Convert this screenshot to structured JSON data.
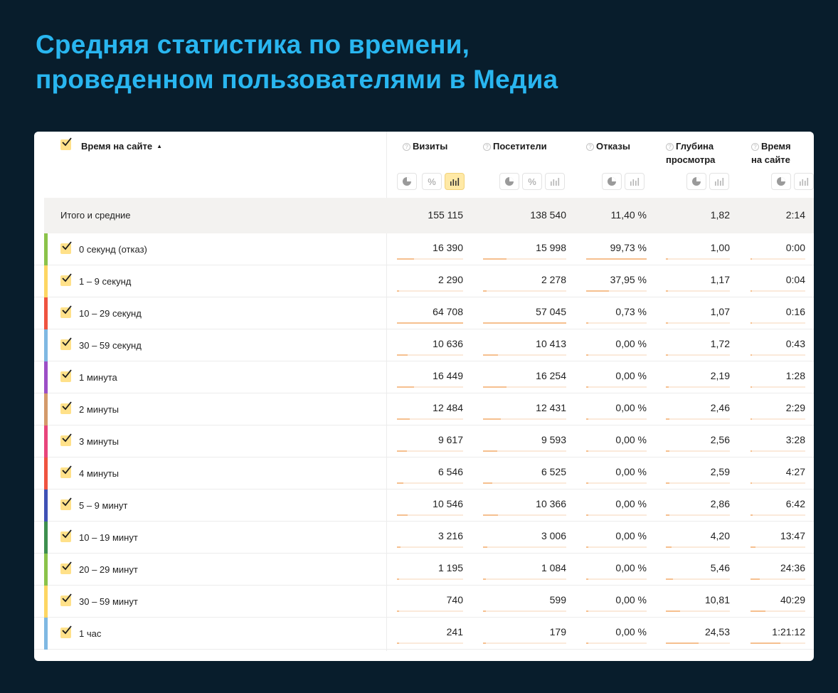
{
  "page": {
    "title_line1": "Средняя статистика по времени,",
    "title_line2": "проведенном пользователями в Медиа"
  },
  "table": {
    "dimension_header": "Время на сайте",
    "sort_indicator": "▲",
    "help_glyph": "?",
    "headers": {
      "visits": "Визиты",
      "visitors": "Посетители",
      "bounces": "Отказы",
      "depth_line1": "Глубина",
      "depth_line2": "просмотра",
      "time_line1": "Время",
      "time_line2": "на сайте"
    },
    "view_buttons": {
      "pie": "pie-chart-icon",
      "percent": "%",
      "bars": "bar-chart-icon"
    },
    "totals": {
      "label": "Итого и средние",
      "visits": "155 115",
      "visitors": "138 540",
      "bounces": "11,40 %",
      "depth": "1,82",
      "time": "2:14"
    },
    "rows": [
      {
        "label": "0 секунд (отказ)",
        "visits": "16 390",
        "visitors": "15 998",
        "bounces": "99,73 %",
        "depth": "1,00",
        "time": "0:00",
        "color": "#8bc34a"
      },
      {
        "label": "1 – 9 секунд",
        "visits": "2 290",
        "visitors": "2 278",
        "bounces": "37,95 %",
        "depth": "1,17",
        "time": "0:04",
        "color": "#fdd663"
      },
      {
        "label": "10 – 29 секунд",
        "visits": "64 708",
        "visitors": "57 045",
        "bounces": "0,73 %",
        "depth": "1,07",
        "time": "0:16",
        "color": "#ef5340"
      },
      {
        "label": "30 – 59 секунд",
        "visits": "10 636",
        "visitors": "10 413",
        "bounces": "0,00 %",
        "depth": "1,72",
        "time": "0:43",
        "color": "#7fb8e2"
      },
      {
        "label": "1 минута",
        "visits": "16 449",
        "visitors": "16 254",
        "bounces": "0,00 %",
        "depth": "2,19",
        "time": "1:28",
        "color": "#9c4fc6"
      },
      {
        "label": "2 минуты",
        "visits": "12 484",
        "visitors": "12 431",
        "bounces": "0,00 %",
        "depth": "2,46",
        "time": "2:29",
        "color": "#d49a6a"
      },
      {
        "label": "3 минуты",
        "visits": "9 617",
        "visitors": "9 593",
        "bounces": "0,00 %",
        "depth": "2,56",
        "time": "3:28",
        "color": "#e8457c"
      },
      {
        "label": "4 минуты",
        "visits": "6 546",
        "visitors": "6 525",
        "bounces": "0,00 %",
        "depth": "2,59",
        "time": "4:27",
        "color": "#ef5340"
      },
      {
        "label": "5 – 9 минут",
        "visits": "10 546",
        "visitors": "10 366",
        "bounces": "0,00 %",
        "depth": "2,86",
        "time": "6:42",
        "color": "#3f51b5"
      },
      {
        "label": "10 – 19 минут",
        "visits": "3 216",
        "visitors": "3 006",
        "bounces": "0,00 %",
        "depth": "4,20",
        "time": "13:47",
        "color": "#3d8f4f"
      },
      {
        "label": "20 – 29 минут",
        "visits": "1 195",
        "visitors": "1 084",
        "bounces": "0,00 %",
        "depth": "5,46",
        "time": "24:36",
        "color": "#8bc34a"
      },
      {
        "label": "30 – 59 минут",
        "visits": "740",
        "visitors": "599",
        "bounces": "0,00 %",
        "depth": "10,81",
        "time": "40:29",
        "color": "#fdd663"
      },
      {
        "label": "1 час",
        "visits": "241",
        "visitors": "179",
        "bounces": "0,00 %",
        "depth": "24,53",
        "time": "1:21:12",
        "color": "#7fb8e2"
      }
    ]
  }
}
